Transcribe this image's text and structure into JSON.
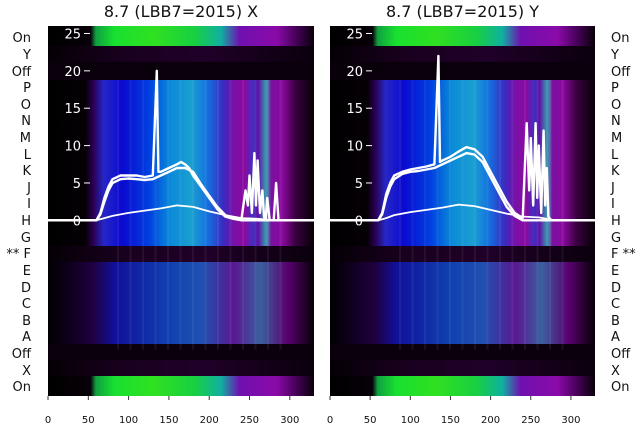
{
  "chart_data": [
    {
      "type": "heatmap",
      "title": "8.7 (LBB7=2015) X",
      "x_ticks": [
        "0",
        "50",
        "100",
        "150",
        "200",
        "250",
        "300"
      ],
      "y_ticks": [
        "0",
        "5",
        "10",
        "15",
        "20",
        "25"
      ],
      "xlim": [
        0,
        330
      ],
      "ylim": [
        -23.5,
        26
      ],
      "row_labels": [
        "On",
        "Y",
        "Off",
        "P",
        "O",
        "N",
        "M",
        "L",
        "K",
        "J",
        "I",
        "H",
        "G",
        "** F",
        "E",
        "D",
        "C",
        "B",
        "A",
        "Off",
        "X",
        "On"
      ],
      "row_label_side": "left",
      "series": [
        {
          "x": [
            0,
            60,
            65,
            70,
            75,
            80,
            90,
            100,
            110,
            120,
            130,
            135,
            137,
            140,
            150,
            160,
            165,
            170,
            175,
            180,
            190,
            200,
            210,
            220,
            230,
            240,
            245,
            248,
            250,
            253,
            256,
            258,
            260,
            263,
            266,
            268,
            270,
            272,
            275,
            278,
            280,
            283,
            286,
            290,
            300,
            310,
            320,
            330
          ],
          "y": [
            0,
            0,
            1,
            3,
            4.5,
            5.5,
            6,
            6,
            6,
            5.8,
            6,
            20,
            6.5,
            6.5,
            7,
            7.5,
            7.8,
            7.5,
            7,
            6,
            4.5,
            3,
            1.5,
            0.5,
            0.2,
            0.2,
            4,
            2,
            6,
            1,
            9,
            2,
            8,
            1,
            4,
            0.5,
            0,
            3,
            0,
            0,
            0,
            5,
            0,
            0,
            0,
            0,
            0,
            0
          ]
        },
        {
          "x": [
            0,
            60,
            65,
            70,
            75,
            80,
            90,
            100,
            110,
            120,
            130,
            140,
            150,
            160,
            170,
            180,
            190,
            200,
            210,
            220,
            230,
            240,
            330
          ],
          "y": [
            0,
            0,
            0.8,
            2.5,
            4,
            5,
            5.5,
            5.6,
            5.5,
            5.4,
            5.5,
            6,
            6.5,
            7,
            7,
            6.5,
            4.8,
            3.3,
            1.8,
            0.7,
            0.2,
            0,
            0
          ]
        },
        {
          "x": [
            0,
            60,
            70,
            80,
            100,
            120,
            140,
            150,
            160,
            170,
            180,
            200,
            220,
            240,
            260,
            280,
            330
          ],
          "y": [
            0,
            0,
            0.3,
            0.6,
            1.0,
            1.3,
            1.6,
            1.8,
            2.0,
            1.9,
            1.8,
            1.2,
            0.7,
            0.3,
            0.2,
            0,
            0
          ]
        }
      ]
    },
    {
      "type": "heatmap",
      "title": "8.7 (LBB7=2015) Y",
      "x_ticks": [
        "0",
        "50",
        "100",
        "150",
        "200",
        "250",
        "300"
      ],
      "y_ticks": [
        "0",
        "5",
        "10",
        "15",
        "20",
        "25"
      ],
      "xlim": [
        0,
        330
      ],
      "ylim": [
        -23.5,
        26
      ],
      "row_labels": [
        "On",
        "Y",
        "Off",
        "P",
        "O",
        "N",
        "M",
        "L",
        "K",
        "J",
        "I",
        "H",
        "G",
        "F **",
        "E",
        "D",
        "C",
        "B",
        "A",
        "Off",
        "X",
        "On"
      ],
      "row_label_side": "right",
      "series": [
        {
          "x": [
            0,
            60,
            65,
            70,
            75,
            80,
            90,
            100,
            110,
            120,
            130,
            135,
            137,
            140,
            150,
            160,
            170,
            180,
            190,
            200,
            210,
            220,
            230,
            240,
            245,
            248,
            250,
            253,
            256,
            258,
            260,
            263,
            266,
            268,
            270,
            272,
            275,
            280,
            330
          ],
          "y": [
            0,
            0,
            1,
            3.5,
            5,
            6,
            6.5,
            6.8,
            7,
            7.2,
            7.5,
            22,
            7.8,
            8,
            8.5,
            9.2,
            9.8,
            9.5,
            8.5,
            6.5,
            4.5,
            2.5,
            1,
            0.3,
            13,
            4,
            11,
            2,
            13,
            3,
            10,
            1,
            12,
            2,
            7,
            0.5,
            0,
            0,
            0
          ]
        },
        {
          "x": [
            0,
            60,
            65,
            70,
            75,
            80,
            90,
            100,
            110,
            120,
            130,
            140,
            150,
            160,
            170,
            180,
            190,
            200,
            210,
            220,
            230,
            240,
            330
          ],
          "y": [
            0,
            0,
            0.8,
            3,
            4.5,
            5.5,
            6.2,
            6.5,
            6.6,
            6.8,
            7,
            7.5,
            8,
            8.5,
            9,
            8.8,
            7.8,
            5.8,
            3.8,
            1.8,
            0.6,
            0,
            0
          ]
        },
        {
          "x": [
            0,
            60,
            70,
            80,
            100,
            120,
            140,
            150,
            160,
            170,
            180,
            200,
            220,
            240,
            260,
            280,
            330
          ],
          "y": [
            0,
            0,
            0.3,
            0.7,
            1.1,
            1.4,
            1.7,
            1.9,
            2.1,
            2.0,
            1.9,
            1.4,
            0.9,
            0.5,
            0.4,
            0,
            0
          ]
        }
      ]
    }
  ]
}
